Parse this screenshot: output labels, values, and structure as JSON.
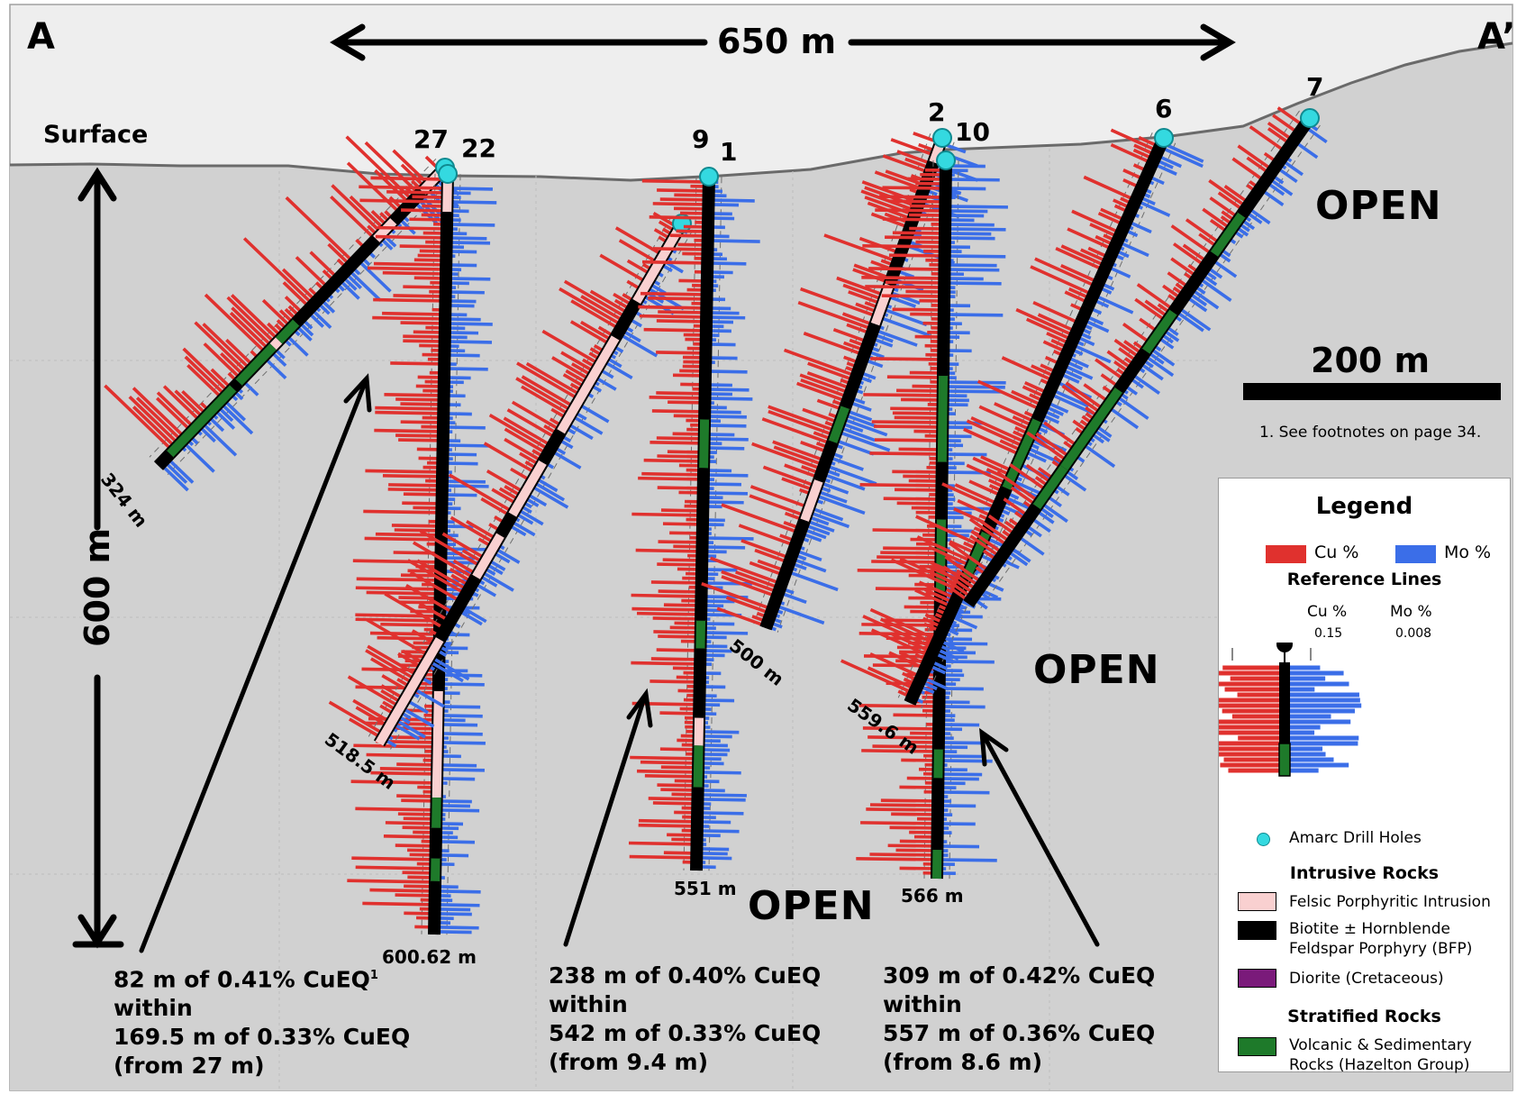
{
  "section": {
    "start_label": "A",
    "end_label": "A’",
    "surface_label": "Surface"
  },
  "dimensions": {
    "horizontal_span": "650 m",
    "vertical_span": "600 m",
    "scale_bar": "200 m"
  },
  "open_labels": [
    "OPEN",
    "OPEN",
    "OPEN"
  ],
  "footnote": "1. See footnotes on page 34.",
  "holes": [
    {
      "label": "27",
      "end_depth": "324 m"
    },
    {
      "label": "22",
      "end_depth": "600.62 m"
    },
    {
      "label": "9",
      "end_depth": "518.5 m"
    },
    {
      "label": "1",
      "end_depth": "551 m"
    },
    {
      "label": "2",
      "end_depth": "500 m"
    },
    {
      "label": "10",
      "end_depth": "566 m"
    },
    {
      "label": "6",
      "end_depth": "559.6 m"
    },
    {
      "label": "7",
      "end_depth": ""
    }
  ],
  "intervals": [
    {
      "line1": "82 m of 0.41% CuEQ",
      "sup": "1",
      "line2": "within",
      "line3": "169.5 m of 0.33% CuEQ",
      "line4": "(from 27 m)"
    },
    {
      "line1": "238 m of 0.40% CuEQ",
      "line2": "within",
      "line3": "542 m of 0.33% CuEQ",
      "line4": "(from 9.4 m)"
    },
    {
      "line1": "309 m of 0.42% CuEQ",
      "line2": "within",
      "line3": "557 m of 0.36% CuEQ",
      "line4": "(from 8.6 m)"
    }
  ],
  "legend": {
    "title": "Legend",
    "cu_label": "Cu %",
    "mo_label": "Mo %",
    "reference_lines_title": "Reference Lines",
    "ref_cu_label": "Cu %",
    "ref_cu_value": "0.15",
    "ref_mo_label": "Mo %",
    "ref_mo_value": "0.008",
    "drill_holes_label": "Amarc Drill Holes",
    "intrusive_title": "Intrusive Rocks",
    "felsic_label": "Felsic Porphyritic Intrusion",
    "bfp_label_1": "Biotite ± Hornblende",
    "bfp_label_2": "Feldspar Porphyry (BFP)",
    "diorite_label": "Diorite (Cretaceous)",
    "stratified_title": "Stratified Rocks",
    "volcanic_label_1": "Volcanic & Sedimentary",
    "volcanic_label_2": "Rocks (Hazelton Group)"
  },
  "colors": {
    "cu": "#e0312e",
    "mo": "#3b6ee8",
    "bfp": "#000000",
    "felsic": "#f9d0d0",
    "diorite": "#7a1a7a",
    "volcanic": "#1e7a2a",
    "collar": "#34d9e0",
    "ground": "#d1d1d1",
    "sky": "#eeeeee"
  }
}
